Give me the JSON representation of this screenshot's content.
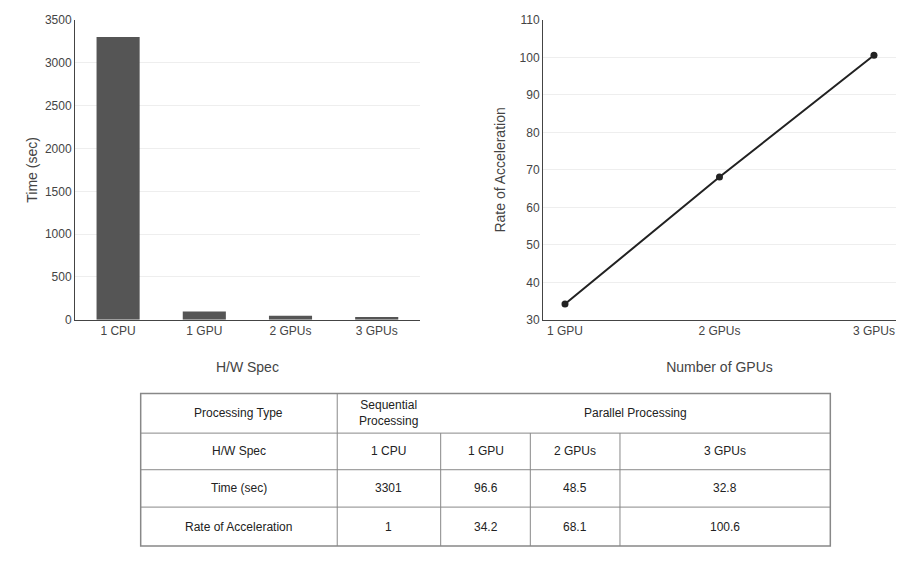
{
  "chart_data": [
    {
      "type": "bar",
      "categories": [
        "1 CPU",
        "1 GPU",
        "2 GPUs",
        "3 GPUs"
      ],
      "values": [
        3301,
        96.6,
        48.5,
        32.8
      ],
      "color": "#555555",
      "xlabel": "H/W Spec",
      "ylabel": "Time (sec)",
      "ylim": [
        0,
        3500
      ],
      "yticks": [
        0,
        500,
        1000,
        1500,
        2000,
        2500,
        3000,
        3500
      ],
      "grid": true
    },
    {
      "type": "line",
      "categories": [
        "1 GPU",
        "2 GPUs",
        "3 GPUs"
      ],
      "values": [
        34.2,
        68.1,
        100.6
      ],
      "color": "#222222",
      "marker": "circle",
      "xlabel": "Number of GPUs",
      "ylabel": "Rate of Acceleration",
      "ylim": [
        30,
        110
      ],
      "yticks": [
        30,
        40,
        50,
        60,
        70,
        80,
        90,
        100,
        110
      ],
      "grid": true
    },
    {
      "type": "table",
      "header": [
        "Processing Type",
        "Sequential\nProcessing",
        "Parallel Processing"
      ],
      "rows": [
        [
          "H/W Spec",
          "1 CPU",
          "1 GPU",
          "2 GPUs",
          "3 GPUs"
        ],
        [
          "Time (sec)",
          "3301",
          "96.6",
          "48.5",
          "32.8"
        ],
        [
          "Rate of Acceleration",
          "1",
          "34.2",
          "68.1",
          "100.6"
        ]
      ]
    }
  ]
}
